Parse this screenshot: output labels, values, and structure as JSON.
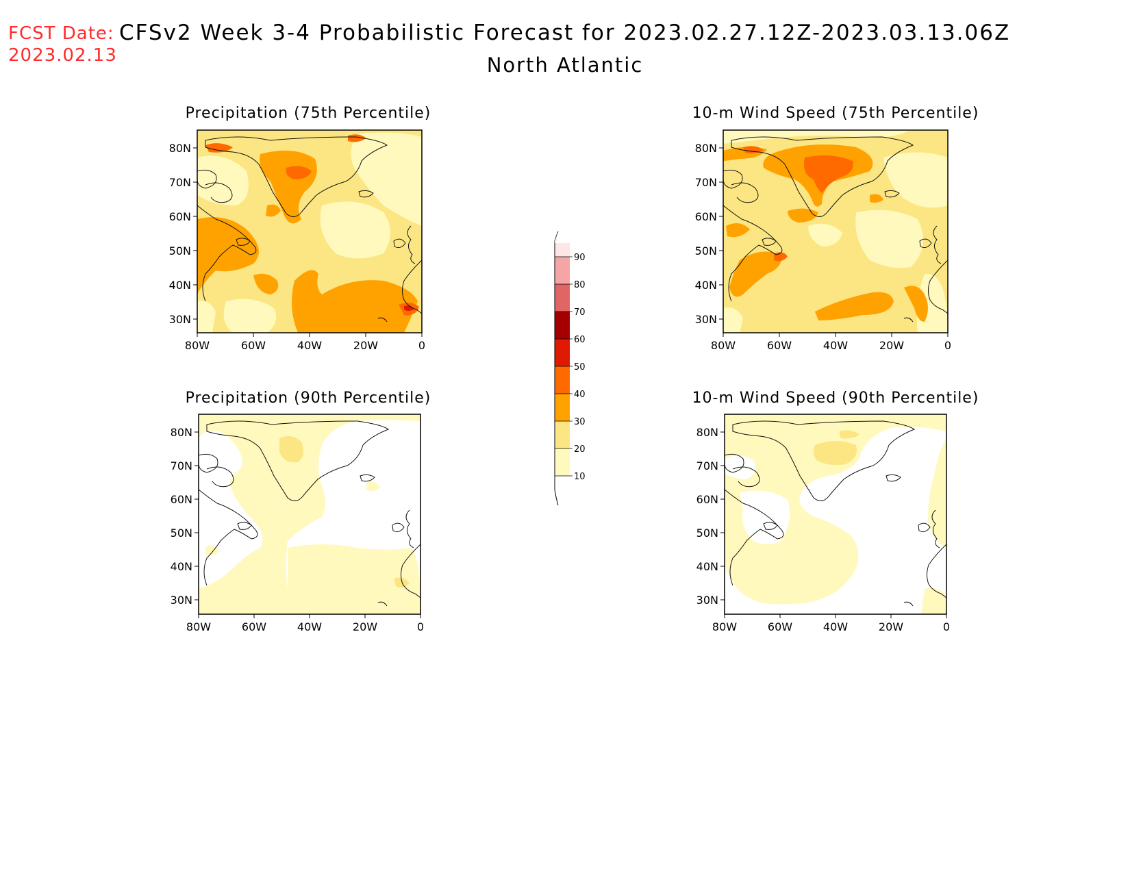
{
  "header": {
    "fcst_label": "FCST Date:",
    "fcst_date": "2023.02.13",
    "title": "CFSv2 Week 3-4 Probabilistic Forecast for 2023.02.27.12Z-2023.03.13.06Z",
    "region": "North Atlantic"
  },
  "axes": {
    "lat_ticks": [
      "80N",
      "70N",
      "60N",
      "50N",
      "40N",
      "30N"
    ],
    "lon_ticks": [
      "80W",
      "60W",
      "40W",
      "20W",
      "0"
    ],
    "lon_range": [
      -80,
      0
    ],
    "lat_range": [
      25,
      85
    ]
  },
  "panels": [
    {
      "id": "precip-75",
      "title": "Precipitation (75th Percentile)",
      "variable": "precipitation",
      "percentile": 75
    },
    {
      "id": "wind-75",
      "title": "10-m Wind Speed (75th Percentile)",
      "variable": "wind",
      "percentile": 75
    },
    {
      "id": "precip-90",
      "title": "Precipitation (90th Percentile)",
      "variable": "precipitation",
      "percentile": 90
    },
    {
      "id": "wind-90",
      "title": "10-m Wind Speed (90th Percentile)",
      "variable": "wind",
      "percentile": 90
    }
  ],
  "colorbar": {
    "levels": [
      "10",
      "20",
      "30",
      "40",
      "50",
      "60",
      "70",
      "80",
      "90"
    ],
    "colors": [
      "#fff9bd",
      "#fce683",
      "#ffa200",
      "#ff6a00",
      "#e01a00",
      "#a50000",
      "#e06666",
      "#f5a5a5",
      "#fde6e6"
    ]
  }
}
